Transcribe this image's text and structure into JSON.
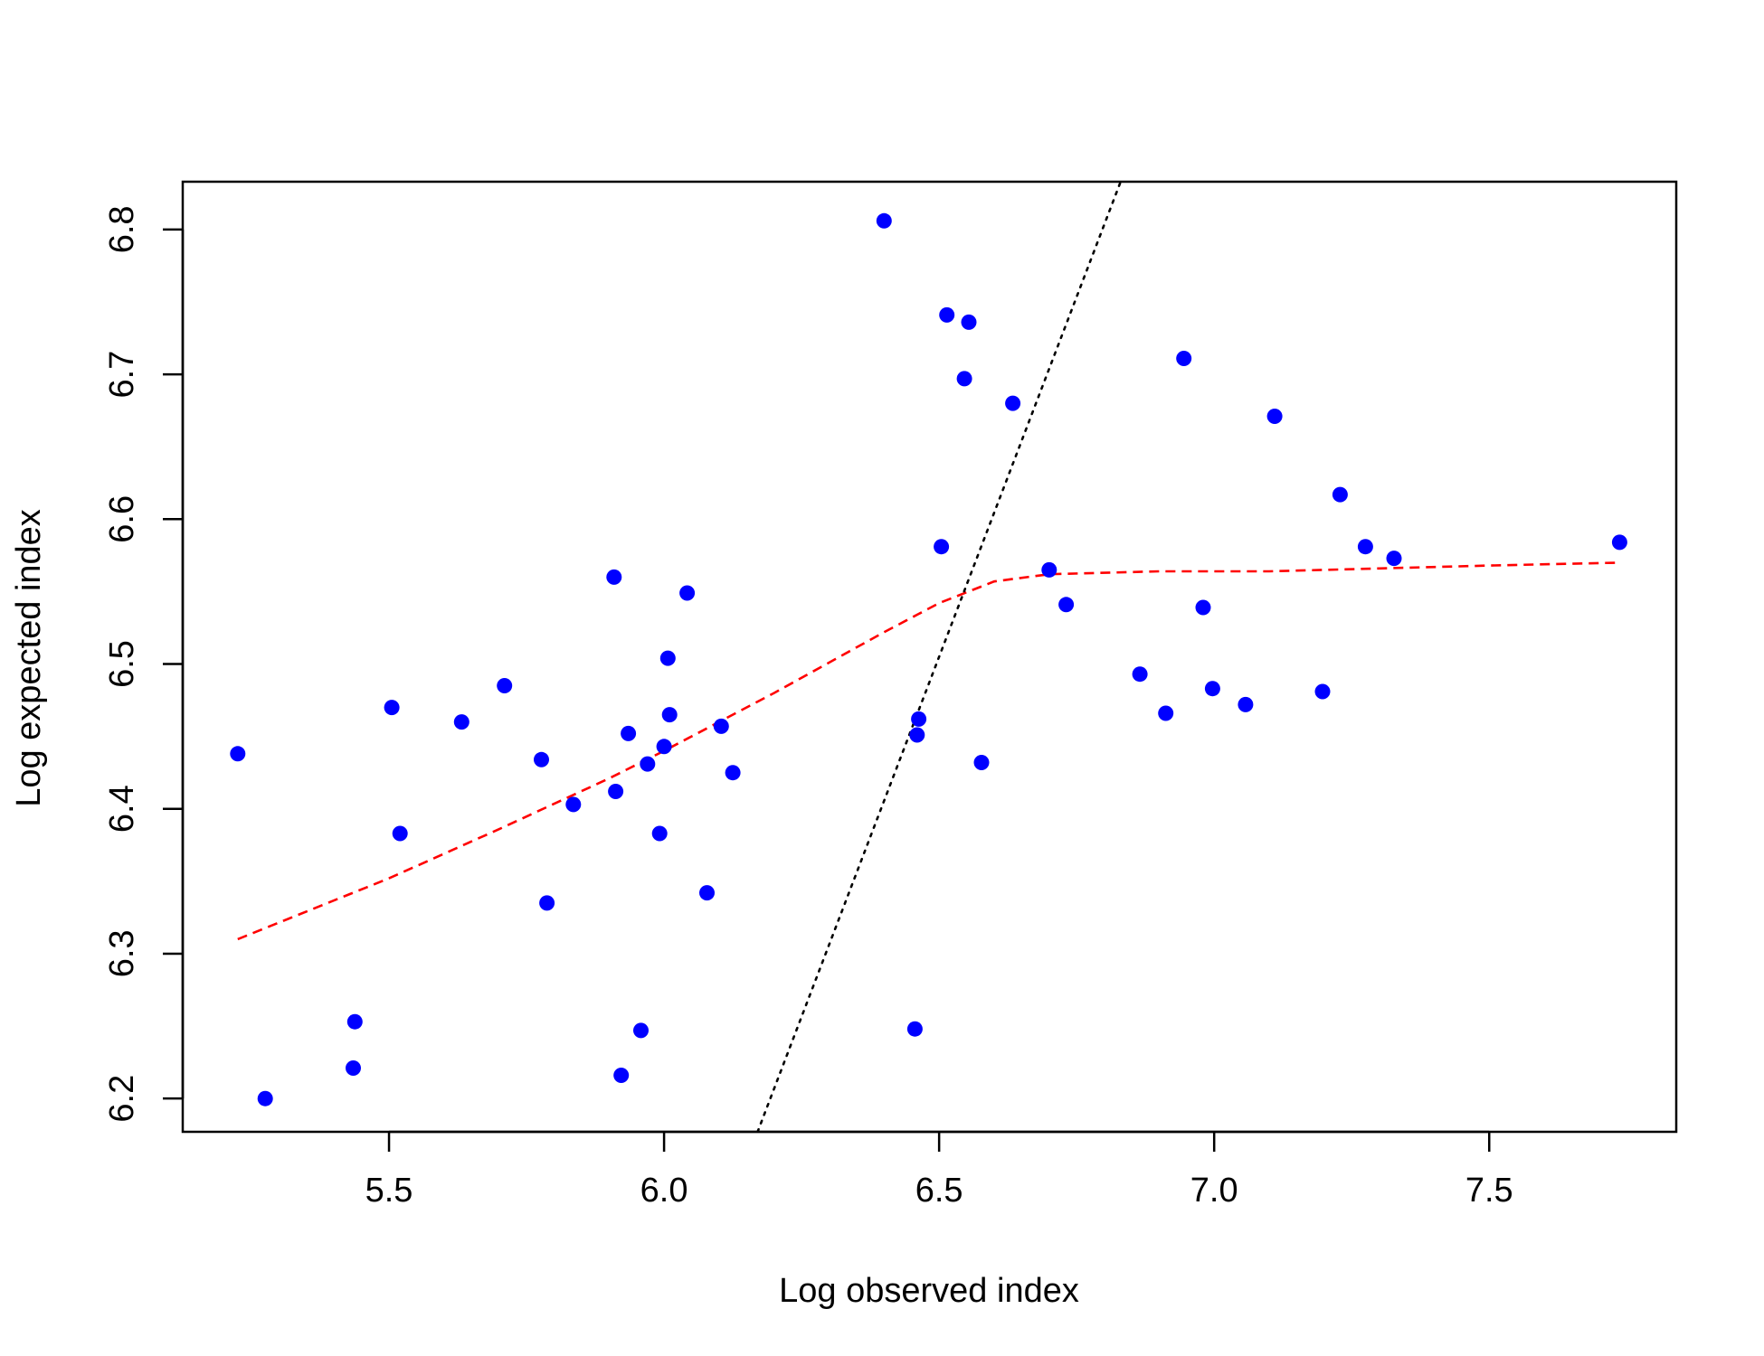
{
  "chart_data": {
    "type": "scatter",
    "title": "",
    "xlabel": "Log observed index",
    "ylabel": "Log expected index",
    "xlim": [
      5.125,
      7.84
    ],
    "ylim": [
      6.177,
      6.833
    ],
    "x_ticks": [
      5.5,
      6.0,
      6.5,
      7.0,
      7.5
    ],
    "x_tick_labels": [
      "5.5",
      "6.0",
      "6.5",
      "7.0",
      "7.5"
    ],
    "y_ticks": [
      6.2,
      6.3,
      6.4,
      6.5,
      6.6,
      6.7,
      6.8
    ],
    "y_tick_labels": [
      "6.2",
      "6.3",
      "6.4",
      "6.5",
      "6.6",
      "6.7",
      "6.8"
    ],
    "grid": false,
    "colors": {
      "points": "#0000ff",
      "smooth_line": "#ff0000",
      "identity_line": "#000000"
    },
    "series": [
      {
        "type": "scatter",
        "points": [
          [
            5.225,
            6.438
          ],
          [
            5.275,
            6.2
          ],
          [
            5.435,
            6.221
          ],
          [
            5.438,
            6.253
          ],
          [
            5.505,
            6.47
          ],
          [
            5.52,
            6.383
          ],
          [
            5.632,
            6.46
          ],
          [
            5.71,
            6.485
          ],
          [
            5.777,
            6.434
          ],
          [
            5.787,
            6.335
          ],
          [
            5.835,
            6.403
          ],
          [
            5.909,
            6.56
          ],
          [
            5.912,
            6.412
          ],
          [
            5.922,
            6.216
          ],
          [
            5.935,
            6.452
          ],
          [
            5.958,
            6.247
          ],
          [
            5.97,
            6.431
          ],
          [
            5.992,
            6.383
          ],
          [
            6.0,
            6.443
          ],
          [
            6.007,
            6.504
          ],
          [
            6.01,
            6.465
          ],
          [
            6.042,
            6.549
          ],
          [
            6.078,
            6.342
          ],
          [
            6.104,
            6.457
          ],
          [
            6.125,
            6.425
          ],
          [
            6.4,
            6.806
          ],
          [
            6.456,
            6.248
          ],
          [
            6.46,
            6.451
          ],
          [
            6.463,
            6.462
          ],
          [
            6.504,
            6.581
          ],
          [
            6.514,
            6.741
          ],
          [
            6.546,
            6.697
          ],
          [
            6.554,
            6.736
          ],
          [
            6.577,
            6.432
          ],
          [
            6.634,
            6.68
          ],
          [
            6.7,
            6.565
          ],
          [
            6.731,
            6.541
          ],
          [
            6.865,
            6.493
          ],
          [
            6.912,
            6.466
          ],
          [
            6.945,
            6.711
          ],
          [
            6.98,
            6.539
          ],
          [
            6.997,
            6.483
          ],
          [
            7.057,
            6.472
          ],
          [
            7.11,
            6.671
          ],
          [
            7.197,
            6.481
          ],
          [
            7.229,
            6.617
          ],
          [
            7.275,
            6.581
          ],
          [
            7.327,
            6.573
          ],
          [
            7.737,
            6.584
          ]
        ]
      },
      {
        "type": "line",
        "style": "dashed",
        "points": [
          [
            5.225,
            6.31
          ],
          [
            5.5,
            6.352
          ],
          [
            5.7,
            6.386
          ],
          [
            5.9,
            6.421
          ],
          [
            6.0,
            6.44
          ],
          [
            6.2,
            6.48
          ],
          [
            6.4,
            6.522
          ],
          [
            6.5,
            6.542
          ],
          [
            6.6,
            6.557
          ],
          [
            6.7,
            6.562
          ],
          [
            6.9,
            6.564
          ],
          [
            7.1,
            6.564
          ],
          [
            7.3,
            6.566
          ],
          [
            7.5,
            6.568
          ],
          [
            7.737,
            6.57
          ]
        ]
      },
      {
        "type": "line",
        "style": "dotted",
        "points": [
          [
            6.17,
            6.177
          ],
          [
            6.83,
            6.833
          ]
        ]
      }
    ]
  }
}
